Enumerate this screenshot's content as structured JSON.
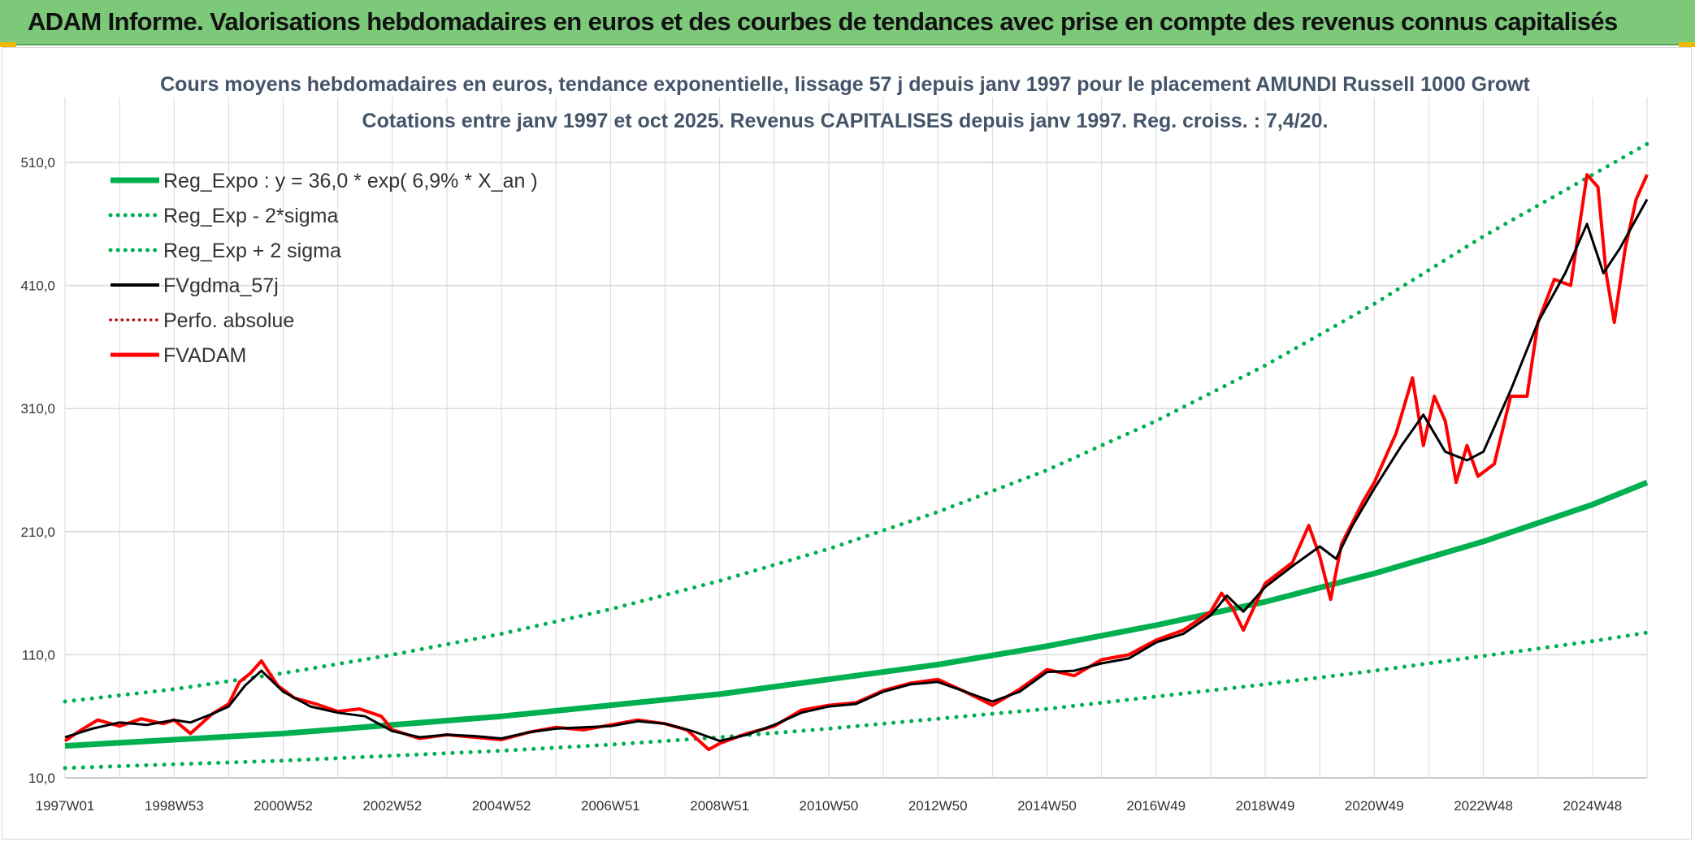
{
  "banner": {
    "title": "ADAM Informe. Valorisations hebdomadaires en euros et des courbes de tendances avec prise en compte des revenus connus capitalisés"
  },
  "colors": {
    "banner_bg": "#7dc97a",
    "reg_expo": "#00b050",
    "fvgdma": "#000000",
    "fvadam": "#ff0000",
    "perfo": "#c00000",
    "grid": "#d9d9d9"
  },
  "chart_data": {
    "type": "line",
    "title": "Cours moyens hebdomadaires en euros, tendance exponentielle, lissage 57 j depuis janv 1997 pour le placement AMUNDI Russell 1000 Growt",
    "subtitle": "Cotations entre janv 1997 et oct 2025. Revenus CAPITALISES depuis janv 1997. Reg. croiss. : 7,4/20.",
    "x_ticks": [
      "1997W01",
      "1998W53",
      "2000W52",
      "2002W52",
      "2004W52",
      "2006W51",
      "2008W51",
      "2010W50",
      "2012W50",
      "2014W50",
      "2016W49",
      "2018W49",
      "2020W49",
      "2022W48",
      "2024W48"
    ],
    "x_tick_years": [
      1997.0,
      1999.0,
      2001.0,
      2003.0,
      2005.0,
      2007.0,
      2009.0,
      2011.0,
      2013.0,
      2015.0,
      2017.0,
      2019.0,
      2021.0,
      2023.0,
      2025.0
    ],
    "x_range": [
      1997.0,
      2026.0
    ],
    "y_ticks": [
      "10,0",
      "110,0",
      "210,0",
      "310,0",
      "410,0",
      "510,0"
    ],
    "y_tick_values": [
      10,
      110,
      210,
      310,
      410,
      510
    ],
    "ylim": [
      10,
      510
    ],
    "grid": true,
    "legend_position": "top-left",
    "legend": [
      {
        "label": "Reg_Expo : y = 36,0 * exp( 6,9% *  X_an )",
        "color": "#00b050",
        "style": "solid-thick"
      },
      {
        "label": "Reg_Exp - 2*sigma",
        "color": "#00b050",
        "style": "dotted"
      },
      {
        "label": "Reg_Exp + 2 sigma",
        "color": "#00b050",
        "style": "dotted"
      },
      {
        "label": "FVgdma_57j",
        "color": "#000000",
        "style": "solid"
      },
      {
        "label": "Perfo. absolue",
        "color": "#c00000",
        "style": "dotted"
      },
      {
        "label": "FVADAM",
        "color": "#ff0000",
        "style": "solid"
      }
    ],
    "series": [
      {
        "name": "Reg_Expo : y = 36,0 * exp( 6,9% *  X_an )",
        "x": [
          1997,
          1999,
          2001,
          2003,
          2005,
          2007,
          2009,
          2011,
          2013,
          2015,
          2017,
          2019,
          2021,
          2023,
          2025,
          2026
        ],
        "y": [
          36,
          41,
          46,
          53,
          60,
          69,
          78,
          90,
          102,
          117,
          134,
          153,
          176,
          202,
          232,
          250
        ]
      },
      {
        "name": "Reg_Exp - 2*sigma",
        "x": [
          1997,
          1999,
          2001,
          2003,
          2005,
          2007,
          2009,
          2011,
          2013,
          2015,
          2017,
          2019,
          2021,
          2023,
          2025,
          2026
        ],
        "y": [
          18,
          21,
          24,
          28,
          32,
          37,
          43,
          50,
          58,
          66,
          76,
          86,
          97,
          109,
          121,
          128
        ]
      },
      {
        "name": "Reg_Exp + 2 sigma",
        "x": [
          1997,
          1999,
          2001,
          2003,
          2005,
          2007,
          2009,
          2011,
          2013,
          2015,
          2017,
          2019,
          2021,
          2023,
          2025,
          2026
        ],
        "y": [
          72,
          82,
          95,
          110,
          127,
          147,
          170,
          196,
          226,
          260,
          300,
          345,
          395,
          450,
          500,
          525
        ]
      },
      {
        "name": "FVgdma_57j",
        "x": [
          1997.0,
          1997.5,
          1998.0,
          1998.5,
          1999.0,
          1999.3,
          1999.7,
          2000.0,
          2000.3,
          2000.6,
          2001.0,
          2001.5,
          2002.0,
          2002.5,
          2003.0,
          2003.5,
          2004.0,
          2004.5,
          2005.0,
          2005.5,
          2006.0,
          2006.5,
          2007.0,
          2007.5,
          2008.0,
          2008.5,
          2009.0,
          2009.5,
          2010.0,
          2010.5,
          2011.0,
          2011.5,
          2012.0,
          2012.5,
          2013.0,
          2013.5,
          2014.0,
          2014.5,
          2015.0,
          2015.5,
          2016.0,
          2016.5,
          2017.0,
          2017.5,
          2018.0,
          2018.3,
          2018.6,
          2019.0,
          2019.5,
          2020.0,
          2020.3,
          2020.6,
          2021.0,
          2021.5,
          2021.9,
          2022.3,
          2022.7,
          2023.0,
          2023.5,
          2024.0,
          2024.5,
          2024.9,
          2025.2,
          2025.5,
          2026.0
        ],
        "y": [
          43,
          50,
          55,
          53,
          57,
          55,
          62,
          68,
          85,
          97,
          80,
          68,
          63,
          60,
          48,
          43,
          45,
          44,
          42,
          47,
          50,
          51,
          52,
          56,
          54,
          48,
          40,
          45,
          53,
          63,
          68,
          70,
          80,
          86,
          88,
          80,
          72,
          80,
          96,
          97,
          103,
          107,
          120,
          127,
          142,
          158,
          145,
          165,
          182,
          198,
          188,
          215,
          245,
          280,
          305,
          275,
          268,
          275,
          325,
          380,
          420,
          460,
          420,
          440,
          480
        ]
      },
      {
        "name": "FVADAM",
        "x": [
          1997.0,
          1997.3,
          1997.6,
          1998.0,
          1998.4,
          1998.8,
          1999.0,
          1999.3,
          1999.7,
          2000.0,
          2000.2,
          2000.4,
          2000.6,
          2000.9,
          2001.2,
          2001.6,
          2002.0,
          2002.4,
          2002.8,
          2003.0,
          2003.5,
          2004.0,
          2004.5,
          2005.0,
          2005.5,
          2006.0,
          2006.5,
          2007.0,
          2007.5,
          2008.0,
          2008.4,
          2008.8,
          2009.0,
          2009.5,
          2010.0,
          2010.5,
          2011.0,
          2011.5,
          2012.0,
          2012.5,
          2013.0,
          2013.5,
          2014.0,
          2014.5,
          2015.0,
          2015.5,
          2016.0,
          2016.5,
          2017.0,
          2017.5,
          2018.0,
          2018.2,
          2018.4,
          2018.6,
          2019.0,
          2019.5,
          2019.8,
          2020.0,
          2020.2,
          2020.4,
          2020.8,
          2021.0,
          2021.4,
          2021.7,
          2021.9,
          2022.1,
          2022.3,
          2022.5,
          2022.7,
          2022.9,
          2023.2,
          2023.5,
          2023.8,
          2024.0,
          2024.3,
          2024.6,
          2024.9,
          2025.1,
          2025.25,
          2025.4,
          2025.6,
          2025.8,
          2026.0
        ],
        "y": [
          40,
          49,
          57,
          52,
          58,
          54,
          57,
          46,
          62,
          70,
          88,
          95,
          105,
          85,
          75,
          70,
          64,
          66,
          60,
          49,
          42,
          45,
          43,
          41,
          47,
          51,
          49,
          53,
          57,
          54,
          49,
          33,
          38,
          46,
          52,
          65,
          69,
          71,
          81,
          87,
          90,
          80,
          69,
          82,
          98,
          93,
          106,
          110,
          122,
          130,
          145,
          160,
          148,
          130,
          168,
          185,
          215,
          190,
          155,
          200,
          235,
          250,
          290,
          335,
          280,
          320,
          300,
          250,
          280,
          255,
          265,
          320,
          320,
          380,
          415,
          410,
          500,
          490,
          420,
          380,
          440,
          480,
          500
        ]
      }
    ]
  }
}
